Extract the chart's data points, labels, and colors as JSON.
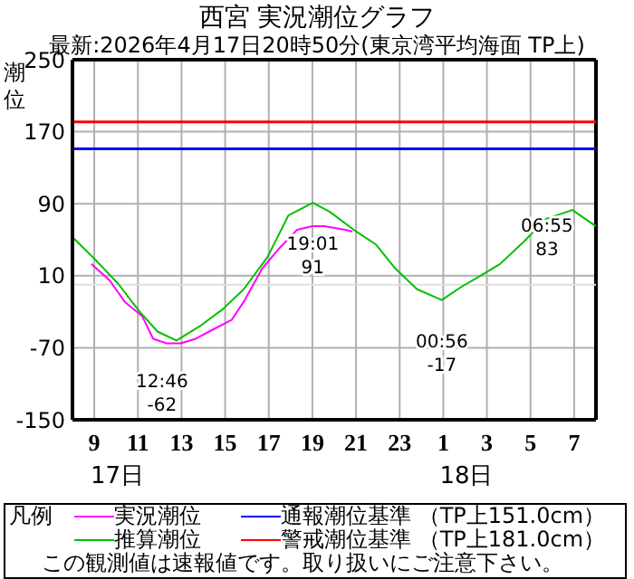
{
  "chart_data": {
    "type": "line",
    "title": "西宮 実況潮位グラフ",
    "subtitle": "最新:2026年4月17日20時50分(東京湾平均海面 TP上)",
    "ylabel": "潮位",
    "legend_title": "凡例",
    "xlim": [
      "2026-04-17T08:00",
      "2026-04-18T08:00"
    ],
    "xticks": [
      {
        "value": "2026-04-17T09:00",
        "label": "9"
      },
      {
        "value": "2026-04-17T11:00",
        "label": "11"
      },
      {
        "value": "2026-04-17T13:00",
        "label": "13"
      },
      {
        "value": "2026-04-17T15:00",
        "label": "15"
      },
      {
        "value": "2026-04-17T17:00",
        "label": "17"
      },
      {
        "value": "2026-04-17T19:00",
        "label": "19"
      },
      {
        "value": "2026-04-17T21:00",
        "label": "21"
      },
      {
        "value": "2026-04-17T23:00",
        "label": "23"
      },
      {
        "value": "2026-04-18T01:00",
        "label": "1"
      },
      {
        "value": "2026-04-18T03:00",
        "label": "3"
      },
      {
        "value": "2026-04-18T05:00",
        "label": "5"
      },
      {
        "value": "2026-04-18T07:00",
        "label": "7"
      }
    ],
    "ylim": [
      -150,
      250
    ],
    "yticks": [
      -150,
      -70,
      10,
      90,
      170,
      250
    ],
    "grid": true,
    "legend": "bottom",
    "marker": "none",
    "line_style": "solid",
    "series": [
      {
        "name": "実況潮位",
        "color": "#ff00ff",
        "x": [
          "2026-04-17T08:52",
          "2026-04-17T09:42",
          "2026-04-17T10:24",
          "2026-04-17T11:12",
          "2026-04-17T11:42",
          "2026-04-17T12:18",
          "2026-04-17T12:58",
          "2026-04-17T13:39",
          "2026-04-17T14:30",
          "2026-04-17T15:18",
          "2026-04-17T15:51",
          "2026-04-17T16:42",
          "2026-04-17T17:30",
          "2026-04-17T18:18",
          "2026-04-17T19:00",
          "2026-04-17T19:33",
          "2026-04-17T20:30",
          "2026-04-17T20:50"
        ],
        "values": [
          23,
          5,
          -19,
          -35,
          -60,
          -65,
          -65,
          -60,
          -49,
          -39,
          -19,
          18,
          41,
          61,
          65,
          65,
          61,
          59
        ]
      },
      {
        "name": "推算潮位",
        "color": "#00c000",
        "x": [
          "2026-04-17T08:00",
          "2026-04-17T09:00",
          "2026-04-17T10:06",
          "2026-04-17T11:03",
          "2026-04-17T11:54",
          "2026-04-17T12:46",
          "2026-04-17T13:54",
          "2026-04-17T14:54",
          "2026-04-17T15:51",
          "2026-04-17T16:57",
          "2026-04-17T17:54",
          "2026-04-17T19:01",
          "2026-04-17T19:48",
          "2026-04-17T20:54",
          "2026-04-17T21:54",
          "2026-04-17T22:48",
          "2026-04-17T23:48",
          "2026-04-18T00:56",
          "2026-04-18T01:51",
          "2026-04-18T02:42",
          "2026-04-18T03:36",
          "2026-04-18T04:42",
          "2026-04-18T05:42",
          "2026-04-18T06:55",
          "2026-04-18T08:00"
        ],
        "values": [
          53,
          29,
          1,
          -29,
          -52,
          -62,
          -45,
          -27,
          -5,
          31,
          77,
          91,
          81,
          61,
          45,
          18,
          -5,
          -17,
          -2,
          10,
          23,
          48,
          73,
          83,
          65
        ]
      }
    ],
    "ref_lines": [
      {
        "axis": "y",
        "value": 151,
        "label": "通報潮位基準 （TP上151.0cm）",
        "color": "#0000ff"
      },
      {
        "axis": "y",
        "value": 181,
        "label": "警戒潮位基準 （TP上181.0cm）",
        "color": "#ff0000"
      },
      {
        "axis": "y",
        "value": 0,
        "label": null,
        "color": "#e0e0e0"
      }
    ],
    "annotations": [
      {
        "text": "12:46\n-62",
        "x": "2026-04-17T12:46",
        "y": -62
      },
      {
        "text": "19:01\n91",
        "x": "2026-04-17T19:01",
        "y": 91
      },
      {
        "text": "00:56\n-17",
        "x": "2026-04-18T00:56",
        "y": -17
      },
      {
        "text": "06:55\n83",
        "x": "2026-04-18T06:55",
        "y": 83
      },
      "17日",
      "18日",
      "この観測値は速報値です。取り扱いにご注意下さい。"
    ]
  }
}
